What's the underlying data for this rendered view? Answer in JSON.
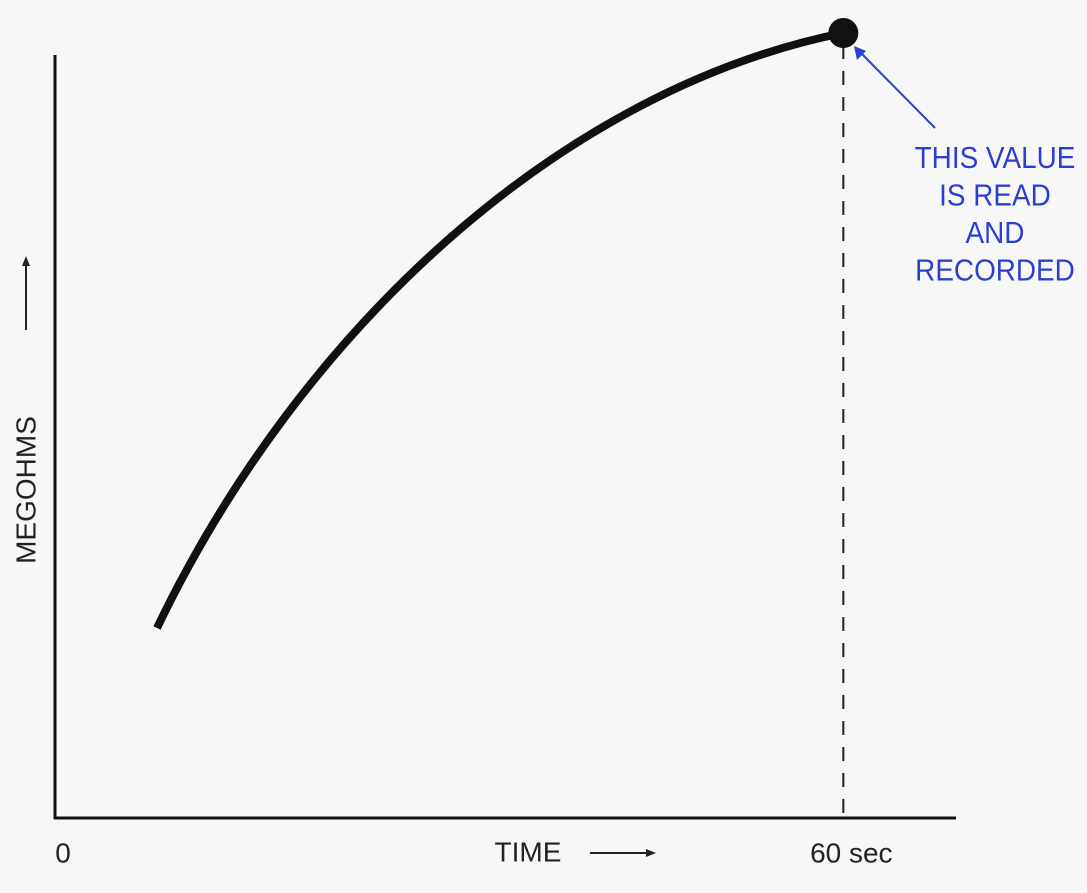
{
  "chart_data": {
    "type": "line",
    "x_label": "TIME",
    "y_label": "MEGOHMS",
    "xlim": [
      0,
      68.5
    ],
    "xticks": [
      0,
      {
        "value": 60,
        "label": "60 sec"
      }
    ],
    "annotation": [
      "THIS VALUE",
      "IS READ",
      "AND",
      "RECORDED"
    ],
    "annotation_color": "#2a3fd0"
  }
}
